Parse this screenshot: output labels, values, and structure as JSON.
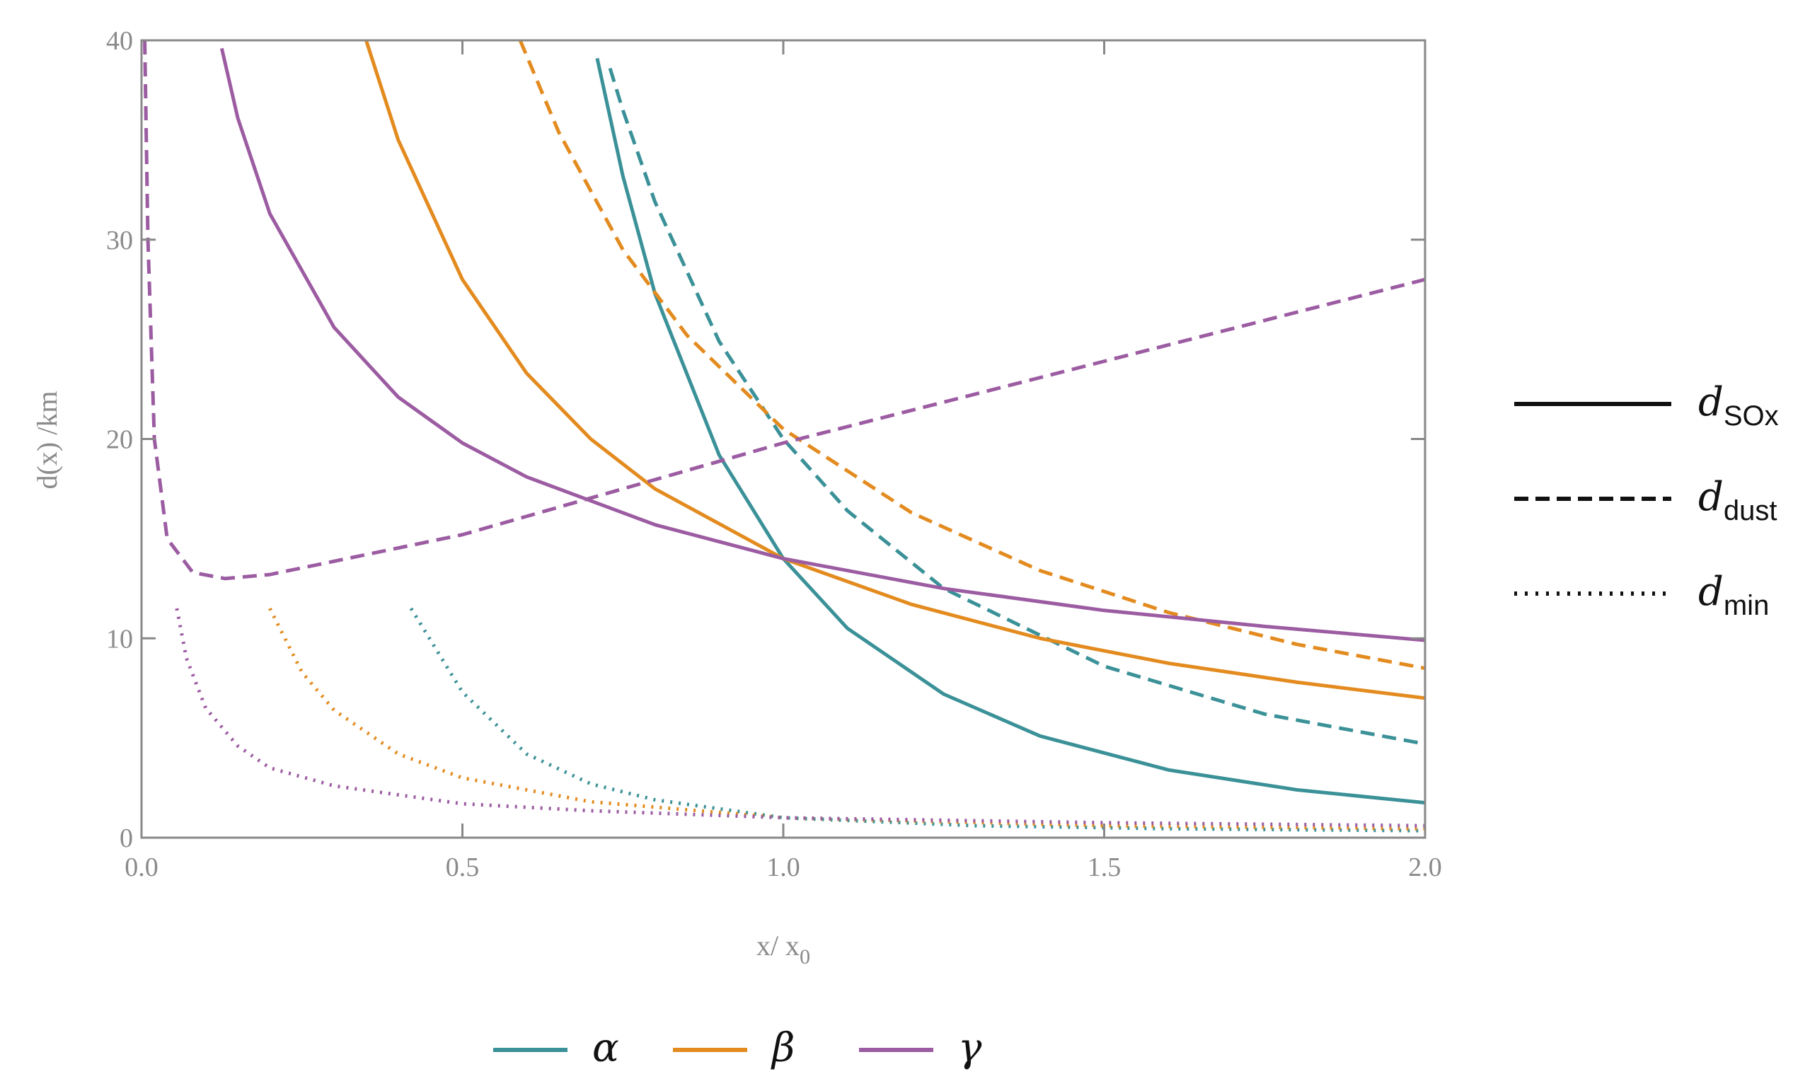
{
  "chart_data": {
    "type": "line",
    "ylabel": "d(x) /km",
    "xlabel": {
      "text": "x/ x",
      "subscript": "0"
    },
    "xlim": [
      0,
      2
    ],
    "ylim": [
      0,
      40
    ],
    "xticks": [
      {
        "value": 0,
        "label": "0.0"
      },
      {
        "value": 0.5,
        "label": "0.5"
      },
      {
        "value": 1,
        "label": "1.0"
      },
      {
        "value": 1.5,
        "label": "1.5"
      },
      {
        "value": 2,
        "label": "2.0"
      }
    ],
    "yticks": [
      0,
      10,
      20,
      30,
      40
    ],
    "line_styles": [
      {
        "name": "d",
        "subscript": "SOx",
        "dash": "solid"
      },
      {
        "name": "d",
        "subscript": "dust",
        "dash": "dashed"
      },
      {
        "name": "d",
        "subscript": "min",
        "dash": "dotted"
      }
    ],
    "groups": [
      {
        "name": "α",
        "color": "#3b9198",
        "lines": [
          {
            "x": [
              0.71,
              0.75,
              0.8,
              0.9,
              1.0,
              1.1,
              1.25,
              1.4,
              1.6,
              1.8,
              2.0
            ],
            "values": [
              39.1,
              33.2,
              27.3,
              19.2,
              14,
              10.5,
              7.2,
              5.1,
              3.4,
              2.4,
              1.75
            ]
          },
          {
            "x": [
              0.73,
              0.75,
              0.8,
              0.9,
              1.0,
              1.1,
              1.25,
              1.5,
              1.75,
              2.0
            ],
            "values": [
              38.6,
              36.5,
              31.9,
              24.9,
              20,
              16.4,
              12.5,
              8.6,
              6.2,
              4.7
            ]
          },
          {
            "x": [
              0.42,
              0.5,
              0.6,
              0.7,
              0.8,
              1.0,
              1.3,
              1.6,
              2.0
            ],
            "values": [
              11.5,
              7.3,
              4.2,
              2.7,
              1.9,
              1.0,
              0.6,
              0.45,
              0.35
            ]
          }
        ]
      },
      {
        "name": "β",
        "color": "#e38b1f",
        "lines": [
          {
            "x": [
              0.35,
              0.4,
              0.5,
              0.6,
              0.7,
              0.8,
              1.0,
              1.2,
              1.4,
              1.6,
              1.8,
              2.0
            ],
            "values": [
              40,
              35,
              28,
              23.3,
              20,
              17.5,
              14,
              11.7,
              10,
              8.75,
              7.8,
              7
            ]
          },
          {
            "x": [
              0.59,
              0.65,
              0.75,
              0.85,
              1.0,
              1.2,
              1.4,
              1.6,
              1.8,
              2.0
            ],
            "values": [
              40,
              35.4,
              29.5,
              25.2,
              20.5,
              16.3,
              13.4,
              11.3,
              9.7,
              8.5
            ]
          },
          {
            "x": [
              0.2,
              0.25,
              0.3,
              0.4,
              0.5,
              0.7,
              1.0,
              1.5,
              2.0
            ],
            "values": [
              11.5,
              8.3,
              6.4,
              4.2,
              3.0,
              1.8,
              1.0,
              0.6,
              0.45
            ]
          }
        ]
      },
      {
        "name": "γ",
        "color": "#9c5ca2",
        "lines": [
          {
            "x": [
              0.125,
              0.15,
              0.2,
              0.3,
              0.4,
              0.5,
              0.6,
              0.8,
              1.0,
              1.25,
              1.5,
              1.75,
              2.0
            ],
            "values": [
              39.6,
              36.1,
              31.3,
              25.6,
              22.1,
              19.8,
              18.1,
              15.7,
              14,
              12.5,
              11.4,
              10.6,
              9.9
            ]
          },
          {
            "x": [
              0.005,
              0.01,
              0.02,
              0.04,
              0.08,
              0.13,
              0.2,
              0.5,
              1.0,
              1.5,
              2.0
            ],
            "values": [
              40,
              30,
              20,
              15,
              13.3,
              13.0,
              13.2,
              15.2,
              19.8,
              23.9,
              28
            ]
          },
          {
            "x": [
              0.055,
              0.07,
              0.1,
              0.15,
              0.2,
              0.3,
              0.5,
              0.7,
              1.0,
              1.5,
              2.0
            ],
            "values": [
              11.5,
              9,
              6.5,
              4.6,
              3.5,
              2.6,
              1.7,
              1.35,
              1.0,
              0.75,
              0.6
            ]
          }
        ]
      }
    ]
  }
}
